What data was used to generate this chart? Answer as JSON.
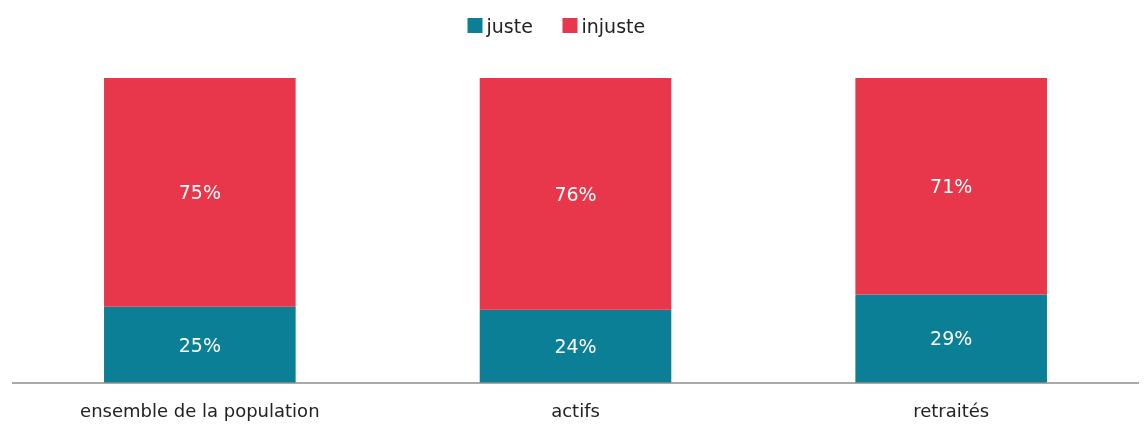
{
  "chart_data": {
    "type": "bar",
    "stacked": true,
    "categories": [
      "ensemble de la population",
      "actifs",
      "retraités"
    ],
    "series": [
      {
        "name": "juste",
        "color": "#0a7f95",
        "values": [
          25,
          24,
          29
        ],
        "value_labels": [
          "25%",
          "24%",
          "29%"
        ]
      },
      {
        "name": "injuste",
        "color": "#e8374a",
        "values": [
          75,
          76,
          71
        ],
        "value_labels": [
          "75%",
          "76%",
          "71%"
        ]
      }
    ],
    "ylim": [
      0,
      100
    ],
    "tick_labels": "x",
    "legend": "top"
  }
}
